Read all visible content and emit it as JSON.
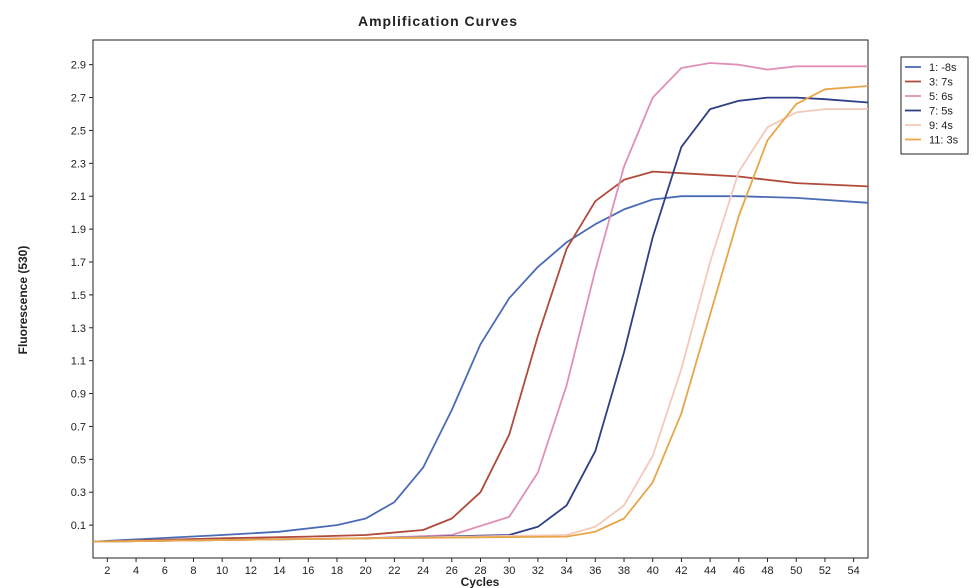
{
  "chart_data": {
    "type": "line",
    "title": "Amplification Curves",
    "xlabel": "Cycles",
    "ylabel": "Fluorescence (530)",
    "xlim": [
      1,
      55
    ],
    "ylim": [
      -0.1,
      3.05
    ],
    "x_ticks": [
      2,
      4,
      6,
      8,
      10,
      12,
      14,
      16,
      18,
      20,
      22,
      24,
      26,
      28,
      30,
      32,
      34,
      36,
      38,
      40,
      42,
      44,
      46,
      48,
      50,
      52,
      54
    ],
    "y_ticks": [
      0.1,
      0.3,
      0.5,
      0.7,
      0.9,
      1.1,
      1.3,
      1.5,
      1.7,
      1.9,
      2.1,
      2.3,
      2.5,
      2.7,
      2.9
    ],
    "grid": false,
    "legend_position": "right",
    "series": [
      {
        "name": "1: -8s",
        "color": "#4a6bb5",
        "points": [
          [
            1,
            0.0
          ],
          [
            10,
            0.04
          ],
          [
            14,
            0.06
          ],
          [
            18,
            0.1
          ],
          [
            20,
            0.14
          ],
          [
            22,
            0.24
          ],
          [
            24,
            0.45
          ],
          [
            26,
            0.8
          ],
          [
            28,
            1.2
          ],
          [
            30,
            1.48
          ],
          [
            32,
            1.67
          ],
          [
            34,
            1.82
          ],
          [
            36,
            1.93
          ],
          [
            38,
            2.02
          ],
          [
            40,
            2.08
          ],
          [
            42,
            2.1
          ],
          [
            46,
            2.1
          ],
          [
            50,
            2.09
          ],
          [
            55,
            2.06
          ]
        ]
      },
      {
        "name": "3: 7s",
        "color": "#b04a3a",
        "points": [
          [
            1,
            0.0
          ],
          [
            10,
            0.02
          ],
          [
            16,
            0.03
          ],
          [
            20,
            0.04
          ],
          [
            24,
            0.07
          ],
          [
            26,
            0.14
          ],
          [
            28,
            0.3
          ],
          [
            30,
            0.65
          ],
          [
            32,
            1.25
          ],
          [
            34,
            1.78
          ],
          [
            36,
            2.07
          ],
          [
            38,
            2.2
          ],
          [
            40,
            2.25
          ],
          [
            42,
            2.24
          ],
          [
            46,
            2.22
          ],
          [
            50,
            2.18
          ],
          [
            55,
            2.16
          ]
        ]
      },
      {
        "name": "5: 6s",
        "color": "#e090b8",
        "points": [
          [
            1,
            0.0
          ],
          [
            20,
            0.02
          ],
          [
            26,
            0.04
          ],
          [
            30,
            0.15
          ],
          [
            32,
            0.42
          ],
          [
            34,
            0.95
          ],
          [
            36,
            1.65
          ],
          [
            38,
            2.28
          ],
          [
            40,
            2.7
          ],
          [
            42,
            2.88
          ],
          [
            44,
            2.91
          ],
          [
            46,
            2.9
          ],
          [
            48,
            2.87
          ],
          [
            50,
            2.89
          ],
          [
            52,
            2.89
          ],
          [
            55,
            2.89
          ]
        ]
      },
      {
        "name": "7: 5s",
        "color": "#2f3f86",
        "points": [
          [
            1,
            0.0
          ],
          [
            20,
            0.02
          ],
          [
            30,
            0.04
          ],
          [
            32,
            0.09
          ],
          [
            34,
            0.22
          ],
          [
            36,
            0.55
          ],
          [
            38,
            1.15
          ],
          [
            40,
            1.85
          ],
          [
            42,
            2.4
          ],
          [
            44,
            2.63
          ],
          [
            46,
            2.68
          ],
          [
            48,
            2.7
          ],
          [
            50,
            2.7
          ],
          [
            52,
            2.69
          ],
          [
            55,
            2.67
          ]
        ]
      },
      {
        "name": "9: 4s",
        "color": "#f3c9b8",
        "points": [
          [
            1,
            0.0
          ],
          [
            20,
            0.02
          ],
          [
            34,
            0.04
          ],
          [
            36,
            0.09
          ],
          [
            38,
            0.22
          ],
          [
            40,
            0.52
          ],
          [
            42,
            1.05
          ],
          [
            44,
            1.7
          ],
          [
            46,
            2.25
          ],
          [
            48,
            2.52
          ],
          [
            50,
            2.61
          ],
          [
            52,
            2.63
          ],
          [
            55,
            2.63
          ]
        ]
      },
      {
        "name": "11: 3s",
        "color": "#e8a54a",
        "points": [
          [
            1,
            0.0
          ],
          [
            20,
            0.02
          ],
          [
            34,
            0.03
          ],
          [
            36,
            0.06
          ],
          [
            38,
            0.14
          ],
          [
            40,
            0.36
          ],
          [
            42,
            0.78
          ],
          [
            44,
            1.38
          ],
          [
            46,
            1.98
          ],
          [
            48,
            2.44
          ],
          [
            50,
            2.66
          ],
          [
            52,
            2.75
          ],
          [
            55,
            2.77
          ]
        ]
      }
    ]
  }
}
